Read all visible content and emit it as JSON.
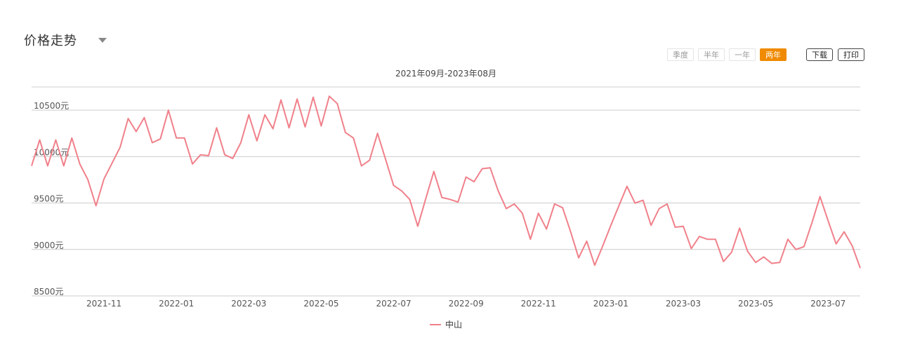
{
  "header": {
    "title": "价格走势"
  },
  "range_buttons": [
    {
      "label": "季度",
      "active": false
    },
    {
      "label": "半年",
      "active": false
    },
    {
      "label": "一年",
      "active": false
    },
    {
      "label": "两年",
      "active": true
    }
  ],
  "actions": {
    "download_label": "下载",
    "print_label": "打印"
  },
  "colors": {
    "accent": "#f08a00",
    "series": "#f0808a"
  },
  "chart_data": {
    "type": "line",
    "title": "2021年09月-2023年08月",
    "xlabel": "",
    "ylabel": "",
    "ylim": [
      8500,
      10750
    ],
    "y_ticks": [
      {
        "value": 8500,
        "label": "8500元"
      },
      {
        "value": 9000,
        "label": "9000元"
      },
      {
        "value": 9500,
        "label": "9500元"
      },
      {
        "value": 10000,
        "label": "10000元"
      },
      {
        "value": 10500,
        "label": "10500元"
      }
    ],
    "x_ticks": [
      {
        "label": "2021-11",
        "index": 9
      },
      {
        "label": "2022-01",
        "index": 18
      },
      {
        "label": "2022-03",
        "index": 27
      },
      {
        "label": "2022-05",
        "index": 36
      },
      {
        "label": "2022-07",
        "index": 45
      },
      {
        "label": "2022-09",
        "index": 54
      },
      {
        "label": "2022-11",
        "index": 63
      },
      {
        "label": "2023-01",
        "index": 72
      },
      {
        "label": "2023-03",
        "index": 81
      },
      {
        "label": "2023-05",
        "index": 90
      },
      {
        "label": "2023-07",
        "index": 99
      }
    ],
    "grid": true,
    "legend": "bottom",
    "series": [
      {
        "name": "中山",
        "values": [
          9900,
          10180,
          9900,
          10180,
          9900,
          10200,
          9920,
          9750,
          9470,
          9760,
          9930,
          10100,
          10410,
          10270,
          10420,
          10150,
          10190,
          10500,
          10200,
          10200,
          9920,
          10020,
          10010,
          10310,
          10020,
          9980,
          10150,
          10450,
          10170,
          10450,
          10300,
          10610,
          10310,
          10620,
          10320,
          10640,
          10330,
          10650,
          10570,
          10260,
          10200,
          9900,
          9960,
          10250,
          9970,
          9690,
          9630,
          9540,
          9250,
          9550,
          9840,
          9560,
          9540,
          9510,
          9780,
          9730,
          9870,
          9880,
          9630,
          9440,
          9490,
          9390,
          9110,
          9390,
          9220,
          9490,
          9450,
          9190,
          8910,
          9090,
          8830,
          9040,
          9260,
          9470,
          9680,
          9500,
          9530,
          9260,
          9440,
          9490,
          9240,
          9250,
          9010,
          9140,
          9110,
          9110,
          8870,
          8970,
          9230,
          8980,
          8860,
          8920,
          8850,
          8860,
          9110,
          9000,
          9030,
          9290,
          9570,
          9310,
          9060,
          9190,
          9040,
          8800
        ]
      }
    ]
  }
}
